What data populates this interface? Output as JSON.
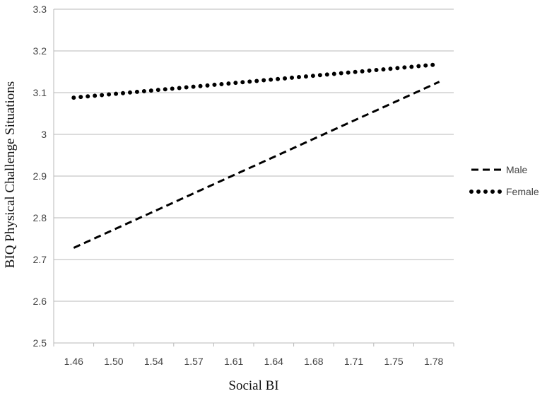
{
  "chart_data": {
    "type": "line",
    "title": "",
    "xlabel": "Social BI",
    "ylabel": "BIQ Physical Challenge Situations",
    "categories": [
      "1.46",
      "1.50",
      "1.54",
      "1.57",
      "1.61",
      "1.64",
      "1.68",
      "1.71",
      "1.75",
      "1.78"
    ],
    "x_range": [
      1.46,
      1.78
    ],
    "ylim": [
      2.5,
      3.3
    ],
    "y_ticks": [
      "2.5",
      "2.6",
      "2.7",
      "2.8",
      "2.9",
      "3",
      "3.1",
      "3.2",
      "3.3"
    ],
    "grid": "horizontal",
    "legend_position": "right",
    "series": [
      {
        "name": "Male",
        "style": "dashed",
        "color": "#000000",
        "x": [
          1.46,
          1.785
        ],
        "y": [
          2.728,
          3.126
        ]
      },
      {
        "name": "Female",
        "style": "dotted",
        "color": "#000000",
        "x": [
          1.46,
          1.785
        ],
        "y": [
          3.088,
          3.168
        ]
      }
    ]
  }
}
